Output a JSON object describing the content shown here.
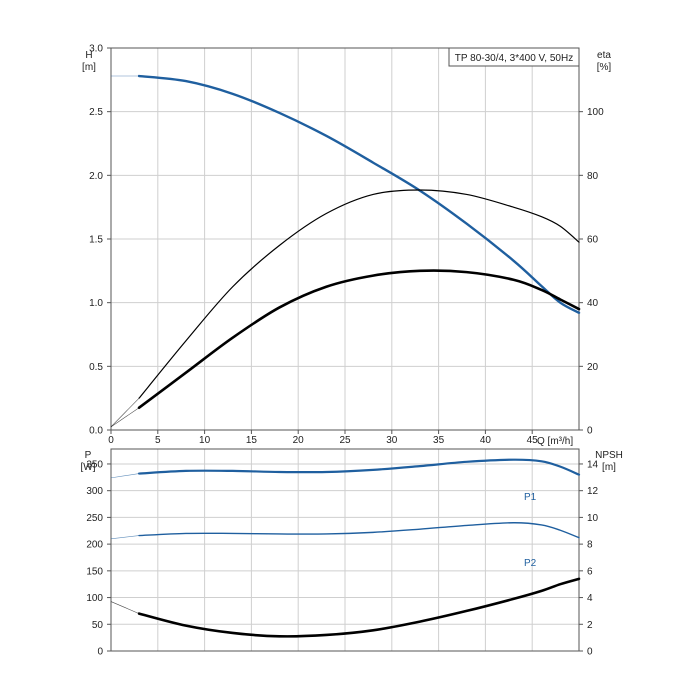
{
  "chart_data": [
    {
      "type": "line",
      "title": "TP 80-30/4, 3*400 V, 50Hz",
      "xlabel": "Q [m³/h]",
      "ylabel": "H",
      "ylabel_unit": "[m]",
      "y2label": "eta",
      "y2label_unit": "[%]",
      "xlim": [
        0,
        50
      ],
      "ylim": [
        0,
        3.0
      ],
      "y2lim": [
        0,
        120
      ],
      "xticks": [
        "0",
        "5",
        "10",
        "15",
        "20",
        "25",
        "30",
        "35",
        "40",
        "45"
      ],
      "yticks": [
        "0.0",
        "0.5",
        "1.0",
        "1.5",
        "2.0",
        "2.5",
        "3.0"
      ],
      "y2ticks": [
        "0",
        "20",
        "40",
        "60",
        "80",
        "100"
      ],
      "grid": true,
      "series": [
        {
          "key": "head",
          "axis": "left",
          "color": "#1f5f9f",
          "ext_x": [
            0,
            3
          ],
          "ext_y": [
            2.78,
            2.78
          ],
          "x": [
            3,
            8,
            13,
            18,
            23,
            28,
            33,
            38,
            43,
            46,
            48,
            50
          ],
          "y": [
            2.78,
            2.74,
            2.64,
            2.49,
            2.31,
            2.1,
            1.88,
            1.62,
            1.33,
            1.13,
            1.0,
            0.92
          ]
        },
        {
          "key": "eta_thin",
          "axis": "right",
          "color": "#000000",
          "ext_x": [
            0,
            3
          ],
          "ext_y": [
            1,
            10
          ],
          "x": [
            3,
            8,
            13,
            18,
            23,
            28,
            33,
            38,
            43,
            46,
            48,
            50
          ],
          "y": [
            10,
            28,
            45,
            58,
            68,
            74,
            75.4,
            74,
            70,
            67,
            64,
            59
          ]
        },
        {
          "key": "eta_thick",
          "axis": "right",
          "color": "#000000",
          "ext_x": [
            0,
            3
          ],
          "ext_y": [
            1,
            7
          ],
          "x": [
            3,
            8,
            13,
            18,
            23,
            28,
            33,
            38,
            43,
            46,
            48,
            50
          ],
          "y": [
            7,
            18,
            29,
            38.5,
            45,
            48.5,
            50,
            49.6,
            47.2,
            44,
            41,
            38
          ]
        }
      ]
    },
    {
      "type": "line",
      "ylabel": "P",
      "ylabel_unit": "[W]",
      "y2label": "NPSH",
      "y2label_unit": "[m]",
      "xlim": [
        0,
        50
      ],
      "ylim": [
        0,
        378
      ],
      "y2lim": [
        0,
        15.12
      ],
      "yticks": [
        "0",
        "50",
        "100",
        "150",
        "200",
        "250",
        "300",
        "350"
      ],
      "y2ticks": [
        "0",
        "2",
        "4",
        "6",
        "8",
        "10",
        "12",
        "14"
      ],
      "grid": true,
      "series": [
        {
          "name": "P1",
          "axis": "left",
          "color": "#1f5f9f",
          "ext_x": [
            0,
            3
          ],
          "ext_y": [
            324,
            332
          ],
          "x": [
            3,
            8,
            13,
            18,
            23,
            28,
            33,
            38,
            43,
            46,
            48,
            50
          ],
          "y": [
            332,
            337,
            337,
            335,
            335,
            339,
            346,
            354,
            358,
            355,
            345,
            330
          ]
        },
        {
          "name": "P2",
          "axis": "left",
          "color": "#1f5f9f",
          "ext_x": [
            0,
            3
          ],
          "ext_y": [
            210,
            216
          ],
          "x": [
            3,
            8,
            13,
            18,
            23,
            28,
            33,
            38,
            43,
            46,
            48,
            50
          ],
          "y": [
            216,
            220,
            220,
            219,
            219,
            222,
            228,
            235,
            240,
            236,
            226,
            212
          ]
        },
        {
          "key": "npsh",
          "axis": "right",
          "color": "#000000",
          "ext_x": [
            0,
            3
          ],
          "ext_y": [
            3.7,
            2.8
          ],
          "x": [
            3,
            8,
            13,
            18,
            23,
            28,
            33,
            38,
            43,
            46,
            48,
            50
          ],
          "y": [
            2.8,
            1.9,
            1.35,
            1.1,
            1.2,
            1.55,
            2.2,
            3.0,
            3.9,
            4.5,
            5.0,
            5.4
          ]
        }
      ]
    }
  ]
}
